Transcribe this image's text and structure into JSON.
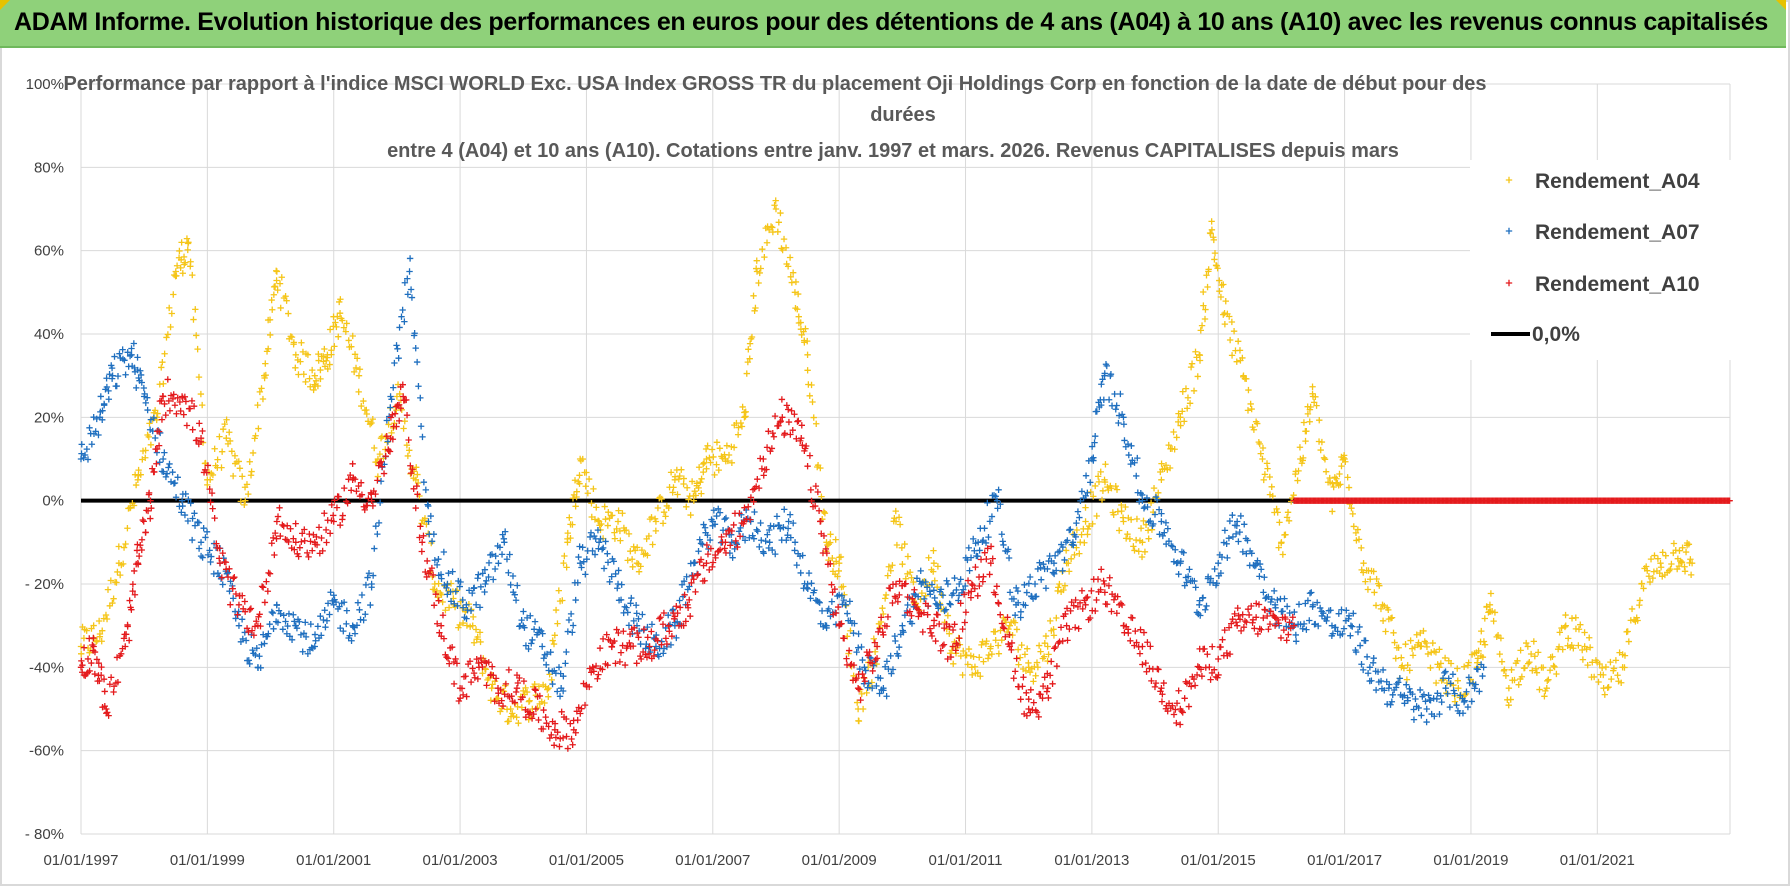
{
  "banner": {
    "title": "ADAM Informe. Evolution historique des performances en euros pour des détentions de 4 ans (A04) à 10 ans (A10) avec les revenus connus capitalisés"
  },
  "chart_data": {
    "type": "scatter",
    "title_lines": [
      "Performance par rapport à l'indice MSCI WORLD Exc. USA Index GROSS TR  du placement Oji Holdings Corp en fonction de la date de début pour des",
      "durées",
      "entre 4 (A04) et 10 ans (A10).  Cotations entre janv. 1997 et mars. 2026. Revenus CAPITALISES depuis mars"
    ],
    "xlabel": "",
    "ylabel": "",
    "x_range": [
      1997.0,
      2023.1
    ],
    "ylim": [
      -80,
      100
    ],
    "y_ticks": [
      "100%",
      "80%",
      "60%",
      "40%",
      "20%",
      "0%",
      "- 20%",
      "-40%",
      "-60%",
      "- 80%"
    ],
    "y_tick_values": [
      100,
      80,
      60,
      40,
      20,
      0,
      -20,
      -40,
      -60,
      -80
    ],
    "x_ticks": [
      "01/01/1997",
      "01/01/1999",
      "01/01/2001",
      "01/01/2003",
      "01/01/2005",
      "01/01/2007",
      "01/01/2009",
      "01/01/2011",
      "01/01/2013",
      "01/01/2015",
      "01/01/2017",
      "01/01/2019",
      "01/01/2021"
    ],
    "x_tick_values": [
      1997,
      1999,
      2001,
      2003,
      2005,
      2007,
      2009,
      2011,
      2013,
      2015,
      2017,
      2019,
      2021
    ],
    "grid": true,
    "legend_position": "right",
    "legend": [
      "Rendement_A04",
      "Rendement_A07",
      "Rendement_A10",
      "0,0%"
    ],
    "series": [
      {
        "name": "Rendement_A04",
        "color": "#f5c518",
        "marker": "plus",
        "x": [
          1997.0,
          1997.3,
          1997.6,
          1997.9,
          1998.2,
          1998.5,
          1998.7,
          1999.0,
          1999.3,
          1999.6,
          1999.9,
          2000.1,
          2000.4,
          2000.7,
          2000.9,
          2001.1,
          2001.4,
          2001.7,
          2002.0,
          2002.3,
          2002.6,
          2002.9,
          2003.2,
          2003.5,
          2003.8,
          2004.1,
          2004.4,
          2004.7,
          2004.9,
          2005.2,
          2005.5,
          2005.8,
          2006.1,
          2006.4,
          2006.7,
          2006.9,
          2007.2,
          2007.5,
          2007.7,
          2008.0,
          2008.3,
          2008.5,
          2008.8,
          2009.0,
          2009.3,
          2009.6,
          2009.9,
          2010.2,
          2010.5,
          2010.8,
          2011.1,
          2011.4,
          2011.7,
          2012.0,
          2012.3,
          2012.6,
          2012.9,
          2013.2,
          2013.5,
          2013.8,
          2014.1,
          2014.4,
          2014.7,
          2014.9,
          2015.1,
          2015.4,
          2015.7,
          2016.0,
          2016.3,
          2016.5,
          2016.8,
          2017.0,
          2017.3,
          2017.6,
          2017.9,
          2018.2,
          2018.5,
          2018.8,
          2019.1,
          2019.3,
          2019.6,
          2019.9,
          2020.2,
          2020.5,
          2020.8,
          2021.1,
          2021.4,
          2021.7,
          2022.0,
          2022.3,
          2022.5
        ],
        "values": [
          -35,
          -32,
          -15,
          5,
          20,
          55,
          62,
          5,
          15,
          0,
          30,
          55,
          35,
          30,
          35,
          45,
          30,
          10,
          25,
          5,
          -20,
          -25,
          -30,
          -45,
          -50,
          -48,
          -45,
          -10,
          10,
          -5,
          -5,
          -15,
          -5,
          5,
          0,
          10,
          10,
          20,
          55,
          70,
          50,
          35,
          -10,
          -15,
          -50,
          -35,
          -5,
          -25,
          -15,
          -35,
          -40,
          -35,
          -30,
          -40,
          -35,
          -15,
          -5,
          5,
          -5,
          -10,
          5,
          20,
          35,
          65,
          45,
          30,
          10,
          -10,
          10,
          25,
          0,
          10,
          -15,
          -25,
          -40,
          -35,
          -40,
          -45,
          -40,
          -25,
          -45,
          -35,
          -45,
          -30,
          -35,
          -45,
          -40,
          -20,
          -15,
          -12,
          -15
        ]
      },
      {
        "name": "Rendement_A07",
        "color": "#1f6fbf",
        "marker": "plus",
        "x": [
          1997.0,
          1997.3,
          1997.5,
          1997.8,
          1998.0,
          1998.3,
          1998.6,
          1998.9,
          1999.2,
          1999.5,
          1999.8,
          2000.1,
          2000.4,
          2000.7,
          2001.0,
          2001.3,
          2001.6,
          2001.9,
          2002.2,
          2002.5,
          2002.8,
          2003.1,
          2003.4,
          2003.7,
          2004.0,
          2004.3,
          2004.6,
          2004.9,
          2005.2,
          2005.5,
          2005.8,
          2006.1,
          2006.4,
          2006.7,
          2007.0,
          2007.3,
          2007.6,
          2007.9,
          2008.2,
          2008.5,
          2008.8,
          2009.1,
          2009.4,
          2009.7,
          2010.0,
          2010.3,
          2010.6,
          2010.9,
          2011.2,
          2011.5,
          2011.8,
          2012.1,
          2012.4,
          2012.7,
          2013.0,
          2013.2,
          2013.5,
          2013.8,
          2014.1,
          2014.4,
          2014.7,
          2015.0,
          2015.3,
          2015.6,
          2015.9,
          2016.2,
          2016.5,
          2016.8,
          2017.1,
          2017.4,
          2017.7,
          2018.0,
          2018.3,
          2018.6,
          2018.9,
          2019.2
        ],
        "values": [
          10,
          20,
          30,
          35,
          25,
          10,
          0,
          -10,
          -15,
          -30,
          -40,
          -25,
          -30,
          -35,
          -25,
          -30,
          -20,
          25,
          55,
          -5,
          -20,
          -25,
          -20,
          -10,
          -30,
          -35,
          -45,
          -15,
          -10,
          -20,
          -30,
          -35,
          -30,
          -15,
          -5,
          -10,
          -5,
          -10,
          -5,
          -20,
          -30,
          -25,
          -40,
          -45,
          -30,
          -20,
          -25,
          -20,
          -10,
          0,
          -25,
          -20,
          -15,
          -10,
          10,
          30,
          20,
          0,
          -5,
          -15,
          -25,
          -15,
          -5,
          -15,
          -25,
          -30,
          -25,
          -30,
          -30,
          -40,
          -45,
          -48,
          -50,
          -45,
          -48,
          -40
        ]
      },
      {
        "name": "Rendement_A10",
        "color": "#e41a1c",
        "marker": "plus",
        "x": [
          1997.0,
          1997.2,
          1997.4,
          1997.7,
          1997.9,
          1998.1,
          1998.3,
          1998.6,
          1998.9,
          1999.2,
          1999.5,
          1999.8,
          2000.1,
          2000.4,
          2000.7,
          2001.0,
          2001.3,
          2001.6,
          2001.9,
          2002.1,
          2002.4,
          2002.7,
          2003.0,
          2003.3,
          2003.6,
          2003.9,
          2004.2,
          2004.5,
          2004.8,
          2005.1,
          2005.4,
          2005.7,
          2006.0,
          2006.3,
          2006.6,
          2006.9,
          2007.2,
          2007.5,
          2007.8,
          2008.1,
          2008.4,
          2008.7,
          2009.0,
          2009.3,
          2009.6,
          2009.9,
          2010.2,
          2010.5,
          2010.8,
          2011.1,
          2011.4,
          2011.7,
          2012.0,
          2012.3,
          2012.6,
          2012.9,
          2013.2,
          2013.5,
          2013.8,
          2014.1,
          2014.4,
          2014.7,
          2015.0,
          2015.3,
          2015.6,
          2015.9,
          2016.2
        ],
        "values": [
          -40,
          -35,
          -50,
          -35,
          -15,
          0,
          25,
          25,
          15,
          -15,
          -25,
          -30,
          -5,
          -10,
          -10,
          -5,
          5,
          0,
          15,
          25,
          -10,
          -30,
          -45,
          -40,
          -45,
          -45,
          -50,
          -55,
          -55,
          -40,
          -35,
          -35,
          -35,
          -30,
          -25,
          -15,
          -10,
          -5,
          10,
          20,
          15,
          -5,
          -30,
          -45,
          -35,
          -20,
          -25,
          -30,
          -35,
          -20,
          -15,
          -35,
          -50,
          -45,
          -30,
          -25,
          -20,
          -30,
          -35,
          -45,
          -50,
          -40,
          -38,
          -30,
          -28,
          -30,
          -30
        ]
      },
      {
        "name": "0,0%",
        "color": "#000000",
        "marker": "line",
        "x": [
          1997.0,
          2016.2
        ],
        "values": [
          0,
          0
        ]
      }
    ],
    "zero_after": {
      "name": "Rendement_A10",
      "color": "#e41a1c",
      "from_x": 2016.2,
      "to_x": 2023.1,
      "value": 0
    }
  }
}
